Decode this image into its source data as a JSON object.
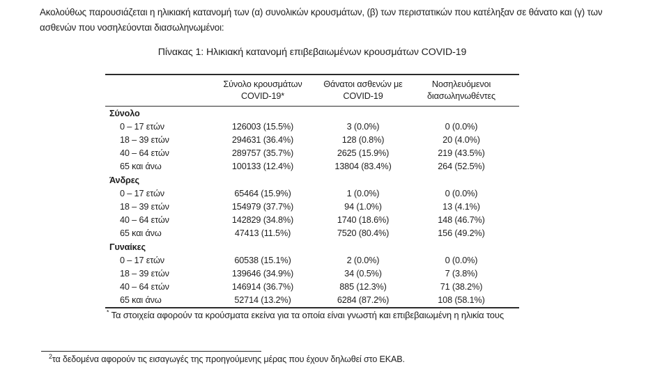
{
  "intro": {
    "line1": "Ακολούθως παρουσιάζεται η ηλικιακή κατανομή των (α) συνολικών κρουσμάτων, (β) των περιστατικών που κατέληξαν σε θάνατο και (γ) των",
    "line2": "ασθενών που νοσηλεύονται διασωληνωμένοι:"
  },
  "table": {
    "title": "Πίνακας 1: Ηλικιακή κατανομή επιβεβαιωμένων κρουσμάτων COVID-19",
    "columns": [
      {
        "line1": "Σύνολο κρουσμάτων",
        "line2": "COVID-19*"
      },
      {
        "line1": "Θάνατοι ασθενών με",
        "line2": "COVID-19"
      },
      {
        "line1": "Νοσηλευόμενοι",
        "line2": "διασωληνωθέντες"
      }
    ],
    "sections": [
      {
        "label": "Σύνολο",
        "rows": [
          {
            "age": "0 – 17 ετών",
            "cases": "126003 (15.5%)",
            "deaths": "3 (0.0%)",
            "intubated": "0 (0.0%)"
          },
          {
            "age": "18 – 39 ετών",
            "cases": "294631 (36.4%)",
            "deaths": "128 (0.8%)",
            "intubated": "20 (4.0%)"
          },
          {
            "age": "40 – 64 ετών",
            "cases": "289757 (35.7%)",
            "deaths": "2625 (15.9%)",
            "intubated": "219 (43.5%)"
          },
          {
            "age": "65 και άνω",
            "cases": "100133 (12.4%)",
            "deaths": "13804 (83.4%)",
            "intubated": "264 (52.5%)"
          }
        ]
      },
      {
        "label": "Άνδρες",
        "rows": [
          {
            "age": "0 – 17 ετών",
            "cases": "65464 (15.9%)",
            "deaths": "1 (0.0%)",
            "intubated": "0 (0.0%)"
          },
          {
            "age": "18 – 39 ετών",
            "cases": "154979 (37.7%)",
            "deaths": "94 (1.0%)",
            "intubated": "13 (4.1%)"
          },
          {
            "age": "40 – 64 ετών",
            "cases": "142829 (34.8%)",
            "deaths": "1740 (18.6%)",
            "intubated": "148 (46.7%)"
          },
          {
            "age": "65 και άνω",
            "cases": "47413 (11.5%)",
            "deaths": "7520 (80.4%)",
            "intubated": "156 (49.2%)"
          }
        ]
      },
      {
        "label": "Γυναίκες",
        "rows": [
          {
            "age": "0 – 17 ετών",
            "cases": "60538 (15.1%)",
            "deaths": "2 (0.0%)",
            "intubated": "0 (0.0%)"
          },
          {
            "age": "18 – 39 ετών",
            "cases": "139646 (34.9%)",
            "deaths": "34 (0.5%)",
            "intubated": "7 (3.8%)"
          },
          {
            "age": "40 – 64 ετών",
            "cases": "146914 (36.7%)",
            "deaths": "885 (12.3%)",
            "intubated": "71 (38.2%)"
          },
          {
            "age": "65 και άνω",
            "cases": "52714 (13.2%)",
            "deaths": "6284 (87.2%)",
            "intubated": "108 (58.1%)"
          }
        ]
      }
    ],
    "footnote_marker": "*",
    "footnote_text": "Τα στοιχεία αφορούν τα κρούσματα εκείνα για τα οποία είναι γνωστή και επιβεβαιωμένη η ηλικία τους"
  },
  "page_footnote": {
    "marker": "2",
    "text": "τα δεδομένα αφορούν τις εισαγωγές της προηγούμενης μέρας που έχουν δηλωθεί στο ΕΚΑΒ."
  }
}
